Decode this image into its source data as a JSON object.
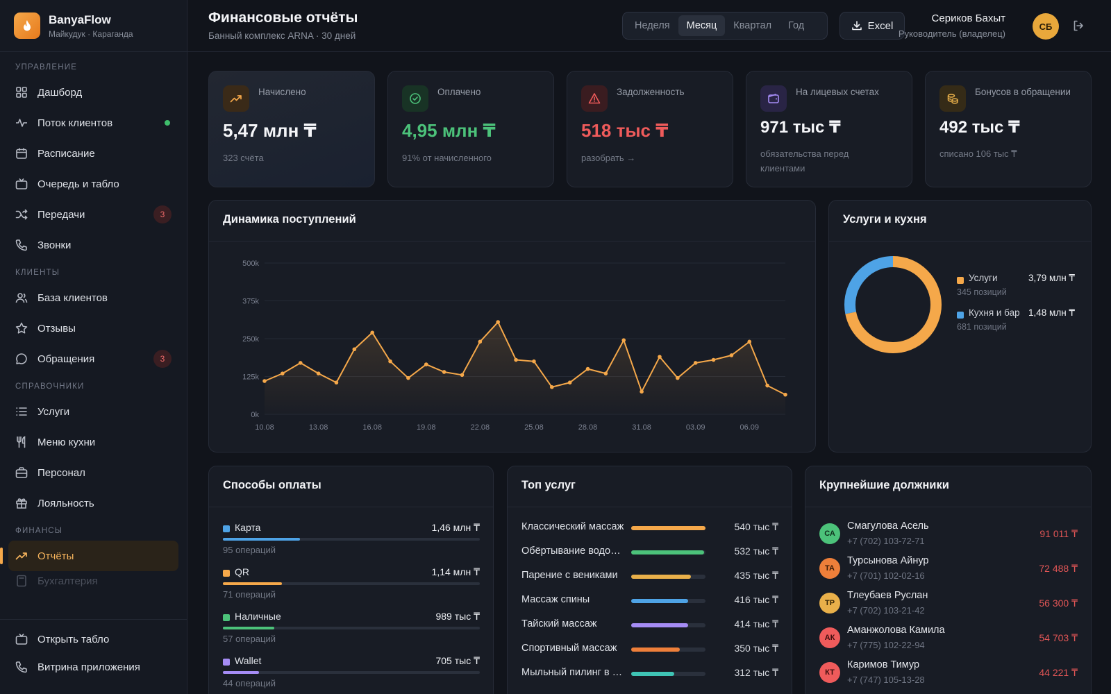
{
  "brand": {
    "name": "BanyaFlow",
    "subtitle": "Майкудук · Караганда"
  },
  "sidebar": {
    "sections": [
      {
        "title": "УПРАВЛЕНИЕ"
      },
      {
        "title": "КЛИЕНТЫ"
      },
      {
        "title": "СПРАВОЧНИКИ"
      },
      {
        "title": "ФИНАНСЫ"
      }
    ],
    "items": [
      {
        "label": "Дашборд",
        "icon": "grid-icon"
      },
      {
        "label": "Поток клиентов",
        "icon": "activity-icon",
        "status": "online"
      },
      {
        "label": "Расписание",
        "icon": "calendar-icon"
      },
      {
        "label": "Очередь и табло",
        "icon": "tv-icon"
      },
      {
        "label": "Передачи",
        "icon": "shuffle-icon",
        "badge": "3"
      },
      {
        "label": "Звонки",
        "icon": "phone-icon"
      },
      {
        "label": "База клиентов",
        "icon": "users-icon"
      },
      {
        "label": "Отзывы",
        "icon": "star-icon"
      },
      {
        "label": "Обращения",
        "icon": "message-icon",
        "badge": "3"
      },
      {
        "label": "Услуги",
        "icon": "list-icon"
      },
      {
        "label": "Меню кухни",
        "icon": "utensils-icon"
      },
      {
        "label": "Персонал",
        "icon": "briefcase-icon"
      },
      {
        "label": "Лояльность",
        "icon": "gift-icon"
      },
      {
        "label": "Отчёты",
        "icon": "trending-up-icon",
        "active": true
      },
      {
        "label": "Бухгалтерия",
        "icon": "calculator-icon"
      }
    ],
    "footer": [
      {
        "label": "Открыть табло",
        "icon": "tv-icon"
      },
      {
        "label": "Витрина приложения",
        "icon": "phone-icon"
      }
    ]
  },
  "header": {
    "title": "Финансовые отчёты",
    "subtitle": "Банный комплекс ARNA · 30 дней",
    "periods": [
      "Неделя",
      "Месяц",
      "Квартал",
      "Год"
    ],
    "selected_period": "Месяц",
    "export_label": "Excel",
    "user": {
      "name": "Сериков Бахыт",
      "role": "Руководитель (владелец)",
      "initials": "СБ"
    }
  },
  "kpis": [
    {
      "label": "Начислено",
      "value": "5,47 млн ₸",
      "note": "323 счёта",
      "icon": "trending-up-icon",
      "color": "#f5a84a"
    },
    {
      "label": "Оплачено",
      "value": "4,95 млн ₸",
      "note": "91% от начисленного",
      "icon": "check-circle-icon",
      "color": "#4cc27a"
    },
    {
      "label": "Задолженность",
      "value": "518 тыс ₸",
      "note": "разобрать →",
      "icon": "alert-triangle-icon",
      "color": "#ef5b5b"
    },
    {
      "label": "На лицевых счетах",
      "value": "971 тыс ₸",
      "note": "обязательства перед клиентами",
      "icon": "wallet-icon",
      "color": "#a58cf5"
    },
    {
      "label": "Бонусов в обращении",
      "value": "492 тыс ₸",
      "note": "списано 106 тыс ₸",
      "icon": "coins-icon",
      "color": "#e9b04a"
    }
  ],
  "revenue_chart": {
    "title": "Динамика поступлений"
  },
  "chart_data": {
    "type": "line",
    "title": "Динамика поступлений",
    "x_ticks": [
      "10.08",
      "13.08",
      "16.08",
      "19.08",
      "22.08",
      "25.08",
      "28.08",
      "31.08",
      "03.09",
      "06.09"
    ],
    "y_ticks": [
      "0k",
      "125k",
      "250k",
      "375k",
      "500k"
    ],
    "ylim": [
      0,
      500000
    ],
    "grid": true,
    "color": "#f5a84a",
    "series": [
      {
        "x": [
          "10.08",
          "11.08",
          "12.08",
          "13.08",
          "14.08",
          "15.08",
          "16.08",
          "17.08",
          "18.08",
          "19.08",
          "20.08",
          "21.08",
          "22.08",
          "23.08",
          "24.08",
          "25.08",
          "26.08",
          "27.08",
          "28.08",
          "29.08",
          "30.08",
          "31.08",
          "01.09",
          "02.09",
          "03.09",
          "04.09",
          "05.09",
          "06.09",
          "07.09",
          "08.09"
        ],
        "values": [
          110000,
          135000,
          170000,
          135000,
          105000,
          215000,
          270000,
          175000,
          120000,
          165000,
          140000,
          130000,
          240000,
          305000,
          180000,
          175000,
          90000,
          105000,
          150000,
          135000,
          245000,
          75000,
          190000,
          120000,
          170000,
          180000,
          195000,
          240000,
          95000,
          65000
        ]
      }
    ]
  },
  "services_split": {
    "title": "Услуги и кухня",
    "chart_data": {
      "type": "pie",
      "categories": [
        "Услуги",
        "Кухня и бар"
      ],
      "values": [
        3.79,
        1.48
      ],
      "colors": [
        "#f5a84a",
        "#4ea3e6"
      ]
    },
    "legend": [
      {
        "name": "Услуги",
        "sub": "345 позиций",
        "value": "3,79 млн ₸",
        "color": "#f5a84a"
      },
      {
        "name": "Кухня и бар",
        "sub": "681 позиций",
        "value": "1,48 млн ₸",
        "color": "#4ea3e6"
      }
    ]
  },
  "payments": {
    "title": "Способы оплаты",
    "items": [
      {
        "name": "Карта",
        "value": "1,46 млн ₸",
        "sub": "95 операций",
        "color": "#4ea3e6",
        "share": 0.3
      },
      {
        "name": "QR",
        "value": "1,14 млн ₸",
        "sub": "71 операций",
        "color": "#f5a84a",
        "share": 0.23
      },
      {
        "name": "Наличные",
        "value": "989 тыс ₸",
        "sub": "57 операций",
        "color": "#4cc27a",
        "share": 0.2
      },
      {
        "name": "Wallet",
        "value": "705 тыс ₸",
        "sub": "44 операций",
        "color": "#a58cf5",
        "share": 0.14
      }
    ]
  },
  "top_services": {
    "title": "Топ услуг",
    "items": [
      {
        "name": "Классический массаж",
        "value": "540 тыс ₸",
        "color": "#f5a84a",
        "share": 1.0
      },
      {
        "name": "Обёртывание водорослями",
        "value": "532 тыс ₸",
        "color": "#4cc27a",
        "share": 0.985
      },
      {
        "name": "Парение с вениками",
        "value": "435 тыс ₸",
        "color": "#e9b04a",
        "share": 0.8
      },
      {
        "name": "Массаж спины",
        "value": "416 тыс ₸",
        "color": "#4ea3e6",
        "share": 0.77
      },
      {
        "name": "Тайский массаж",
        "value": "414 тыс ₸",
        "color": "#a58cf5",
        "share": 0.77
      },
      {
        "name": "Спортивный массаж",
        "value": "350 тыс ₸",
        "color": "#ee7f3a",
        "share": 0.65
      },
      {
        "name": "Мыльный пилинг в хаммаме",
        "value": "312 тыс ₸",
        "color": "#3fc4b5",
        "share": 0.58
      }
    ]
  },
  "debtors": {
    "title": "Крупнейшие должники",
    "items": [
      {
        "initials": "СА",
        "name": "Смагулова Асель",
        "phone": "+7 (702) 103-72-71",
        "amount": "91 011 ₸",
        "color": "#4cc27a"
      },
      {
        "initials": "ТА",
        "name": "Турсынова Айнур",
        "phone": "+7 (701) 102-02-16",
        "amount": "72 488 ₸",
        "color": "#ee7f3a"
      },
      {
        "initials": "ТР",
        "name": "Тлеубаев Руслан",
        "phone": "+7 (702) 103-21-42",
        "amount": "56 300 ₸",
        "color": "#e9b04a"
      },
      {
        "initials": "АК",
        "name": "Аманжолова Камила",
        "phone": "+7 (775) 102-22-94",
        "amount": "54 703 ₸",
        "color": "#ef5b5b"
      },
      {
        "initials": "КТ",
        "name": "Каримов Тимур",
        "phone": "+7 (747) 105-13-28",
        "amount": "44 221 ₸",
        "color": "#ef5b5b"
      }
    ]
  }
}
